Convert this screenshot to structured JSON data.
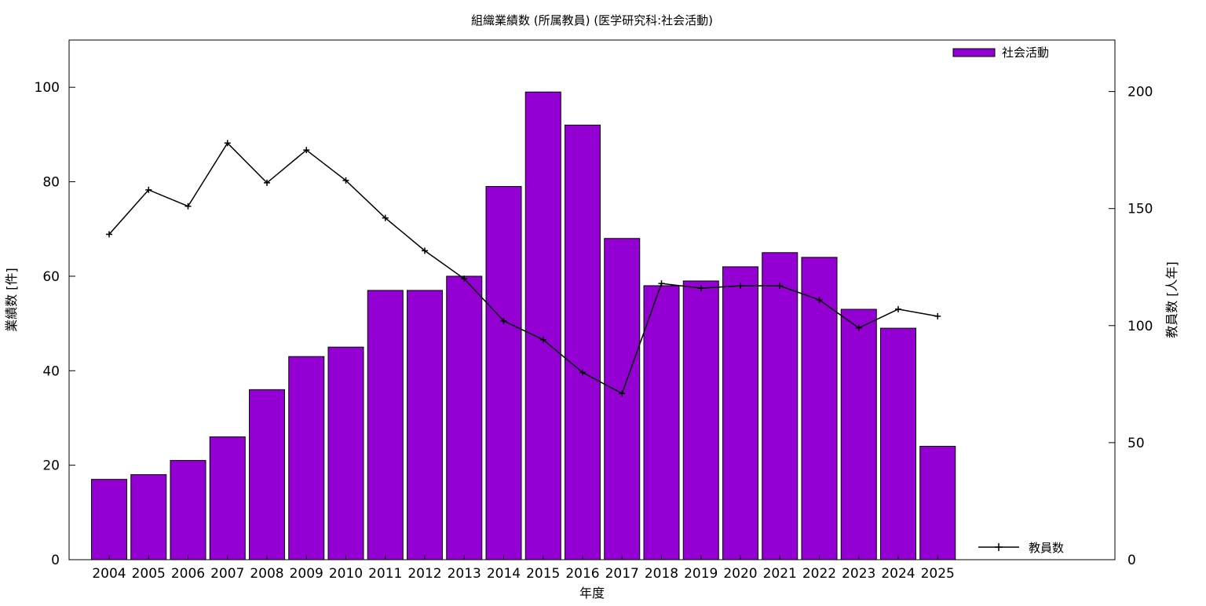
{
  "chart_data": {
    "type": "bar",
    "title": "組織業績数 (所属教員) (医学研究科:社会活動)",
    "xlabel": "年度",
    "ylabel": "業績数 [件]",
    "y2label": "教員数 [人年]",
    "categories": [
      "2004",
      "2005",
      "2006",
      "2007",
      "2008",
      "2009",
      "2010",
      "2011",
      "2012",
      "2013",
      "2014",
      "2015",
      "2016",
      "2017",
      "2018",
      "2019",
      "2020",
      "2021",
      "2022",
      "2023",
      "2024",
      "2025"
    ],
    "ylim": [
      0,
      110
    ],
    "y2lim": [
      0,
      222
    ],
    "yticks": [
      0,
      20,
      40,
      60,
      80,
      100
    ],
    "y2ticks": [
      0,
      50,
      100,
      150,
      200
    ],
    "grid": false,
    "series": [
      {
        "name": "社会活動",
        "type": "bar",
        "axis": "left",
        "color": "#9400d3",
        "values": [
          17,
          18,
          21,
          26,
          36,
          43,
          45,
          57,
          57,
          60,
          79,
          99,
          92,
          68,
          58,
          59,
          62,
          65,
          64,
          53,
          49,
          24
        ]
      },
      {
        "name": "教員数",
        "type": "line",
        "axis": "right",
        "color": "#000000",
        "values": [
          139,
          158,
          151,
          178,
          161,
          175,
          162,
          146,
          132,
          120,
          102,
          94,
          80,
          71,
          118,
          116,
          117,
          117,
          111,
          99,
          107,
          104
        ]
      }
    ],
    "legend": [
      {
        "label": "社会活動",
        "placement": "top-right"
      },
      {
        "label": "教員数",
        "placement": "bottom-right"
      }
    ]
  }
}
